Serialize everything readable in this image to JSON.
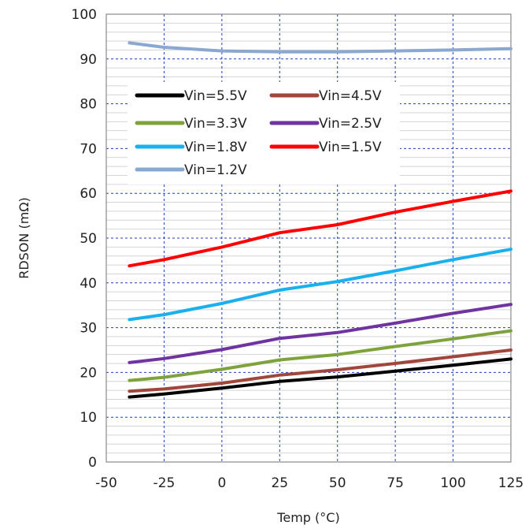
{
  "chart_data": {
    "type": "line",
    "xlabel": "Temp (°C)",
    "ylabel": "RDSON (mΩ)",
    "xlim": [
      -50,
      125
    ],
    "ylim": [
      0,
      100
    ],
    "x_ticks": [
      -50,
      -25,
      0,
      25,
      50,
      75,
      100,
      125
    ],
    "y_ticks": [
      0,
      10,
      20,
      30,
      40,
      50,
      60,
      70,
      80,
      90,
      100
    ],
    "grid": true,
    "legend_position": "top-left",
    "x": [
      -40,
      -25,
      0,
      25,
      50,
      75,
      100,
      125
    ],
    "series": [
      {
        "name": "Vin=5.5V",
        "color": "#000000",
        "values": [
          14.5,
          15.2,
          16.5,
          18.0,
          19.0,
          20.3,
          21.6,
          23.0
        ]
      },
      {
        "name": "Vin=4.5V",
        "color": "#a0463c",
        "values": [
          15.8,
          16.3,
          17.6,
          19.4,
          20.6,
          22.0,
          23.5,
          25.0
        ]
      },
      {
        "name": "Vin=3.3V",
        "color": "#7fa33c",
        "values": [
          18.2,
          18.9,
          20.7,
          22.8,
          24.0,
          25.8,
          27.5,
          29.3
        ]
      },
      {
        "name": "Vin=2.5V",
        "color": "#6f34a0",
        "values": [
          22.2,
          23.1,
          25.1,
          27.6,
          28.9,
          31.0,
          33.2,
          35.2
        ]
      },
      {
        "name": "Vin=1.8V",
        "color": "#1ab0ee",
        "values": [
          31.8,
          32.9,
          35.4,
          38.4,
          40.3,
          42.7,
          45.2,
          47.5
        ]
      },
      {
        "name": "Vin=1.5V",
        "color": "#ff0000",
        "values": [
          43.8,
          45.2,
          48.0,
          51.2,
          53.0,
          55.8,
          58.2,
          60.5
        ]
      },
      {
        "name": "Vin=1.2V",
        "color": "#8aa8d0",
        "values": [
          93.6,
          92.6,
          91.8,
          91.6,
          91.6,
          91.8,
          92.0,
          92.3
        ]
      }
    ]
  }
}
